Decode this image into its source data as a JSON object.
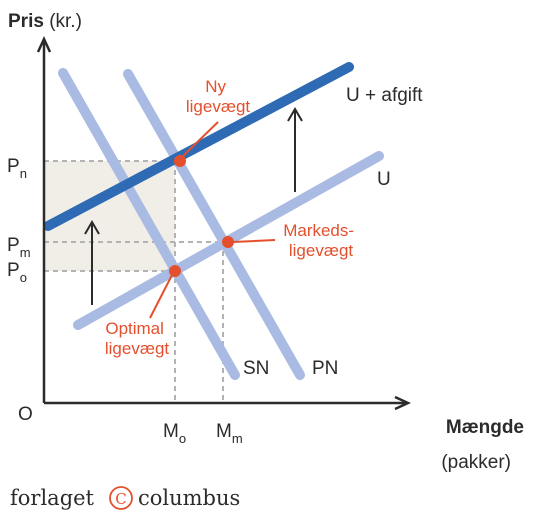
{
  "axes": {
    "y_title_bold": "Pris",
    "y_title_rest": " (kr.)",
    "x_title": "Mængde",
    "x_unit": "(pakker)",
    "origin": "O"
  },
  "y_ticks": {
    "pn": {
      "base": "P",
      "sub": "n"
    },
    "pm": {
      "base": "P",
      "sub": "m"
    },
    "po": {
      "base": "P",
      "sub": "o"
    }
  },
  "x_ticks": {
    "mo": {
      "base": "M",
      "sub": "o"
    },
    "mm": {
      "base": "M",
      "sub": "m"
    }
  },
  "curves": {
    "u_afgift": "U + afgift",
    "u": "U",
    "sn": "SN",
    "pn": "PN"
  },
  "points": {
    "ny": [
      "Ny",
      "ligevægt"
    ],
    "markeds": [
      "Markeds-",
      "ligevægt"
    ],
    "optimal": [
      "Optimal",
      "ligevægt"
    ]
  },
  "colors": {
    "light_curve": "#a9bbe3",
    "tax_curve": "#2f6ab4",
    "equilibrium": "#e4502e",
    "shaded_area": "#f0eee6"
  },
  "footer": {
    "left": "forlaget",
    "mark": "C",
    "right": "columbus"
  }
}
